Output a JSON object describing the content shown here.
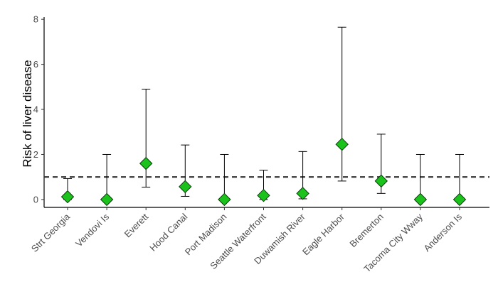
{
  "chart_data": {
    "type": "scatter",
    "title": "",
    "xlabel": "",
    "ylabel": "Risk of liver disease",
    "ylim": [
      -0.35,
      8.1
    ],
    "yticks": [
      0,
      2,
      4,
      6,
      8
    ],
    "grid": false,
    "reference_line": {
      "y": 1,
      "style": "dashed",
      "color": "#333333"
    },
    "marker": {
      "shape": "diamond",
      "fill": "#1cc21c",
      "stroke": "#0a3a0a"
    },
    "categories": [
      "Strt Georgia",
      "Vendovi Is",
      "Everett",
      "Hood Canal",
      "Port Madison",
      "Seattle Waterfront",
      "Duwamish River",
      "Eagle Harbor",
      "Bremerton",
      "Tacoma City Wway",
      "Anderson Is"
    ],
    "series": [
      {
        "values": [
          0.12,
          0.0,
          1.6,
          0.57,
          0.0,
          0.18,
          0.27,
          2.45,
          0.82,
          0.0,
          0.0
        ],
        "lower": [
          0.0,
          0.0,
          0.55,
          0.14,
          0.0,
          0.0,
          0.03,
          0.82,
          0.27,
          0.0,
          0.0
        ],
        "upper": [
          0.93,
          2.0,
          4.9,
          2.42,
          2.0,
          1.3,
          2.13,
          7.65,
          2.9,
          2.0,
          2.0
        ]
      }
    ]
  }
}
